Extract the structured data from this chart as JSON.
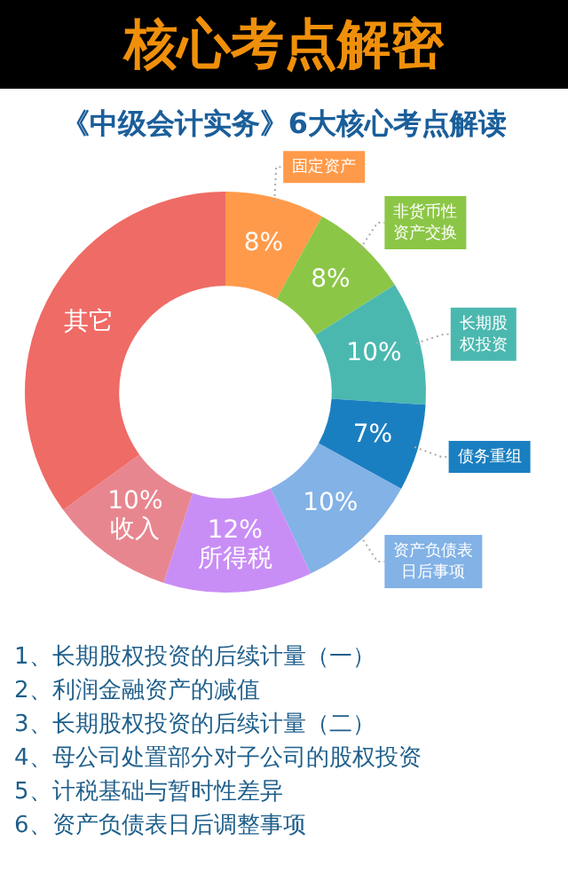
{
  "chart_data": {
    "type": "donut",
    "title": "核心考点解密",
    "subtitle": "《中级会计实务》6大核心考点解读",
    "categories": [
      "固定资产",
      "非货币性资产交换",
      "长期股权投资",
      "债务重组",
      "资产负债表日后事项",
      "所得税",
      "收入",
      "其它"
    ],
    "values": [
      8,
      8,
      10,
      7,
      10,
      12,
      10,
      35
    ],
    "colors": [
      "#ff9a4a",
      "#8cc646",
      "#4bb8b0",
      "#1a7fc1",
      "#82b2e6",
      "#c98ef5",
      "#e8868f",
      "#ef6b66"
    ],
    "value_labels": [
      "8%",
      "8%",
      "10%",
      "7%",
      "10%",
      "12%",
      "10%",
      null
    ],
    "legend": false,
    "annotations": [
      "1、长期股权投资的后续计量（一）",
      "2、利润金融资产的减值",
      "3、长期股权投资的后续计量（二）",
      "4、母公司处置部分对子公司的股权投资",
      "5、计税基础与暂时性差异",
      "6、资产负债表日后调整事项"
    ]
  }
}
